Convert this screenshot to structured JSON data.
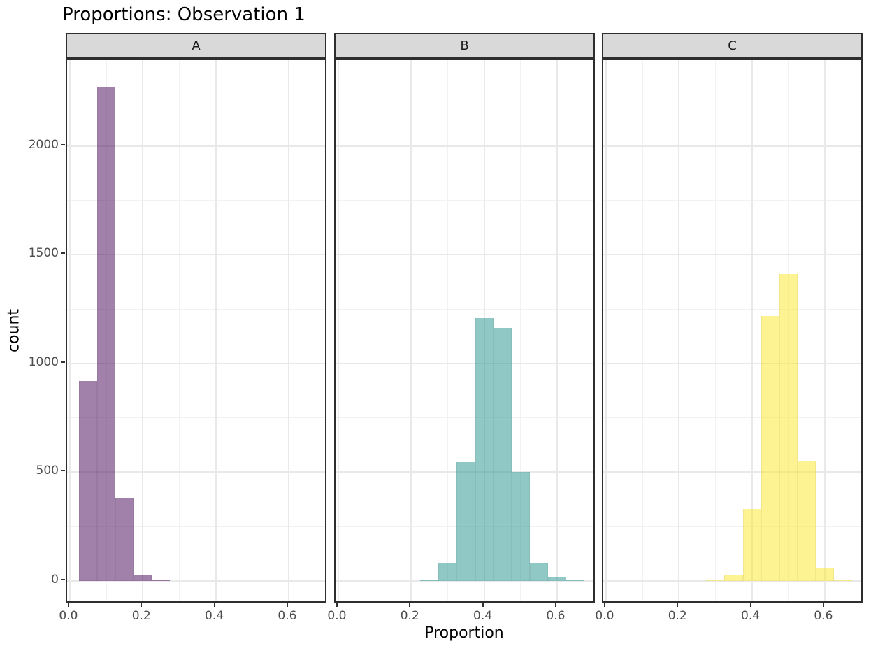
{
  "colors": {
    "background": "#FFFFFF",
    "strip_fill": "#D9D9D9",
    "strip_border": "#2E2E2E",
    "panel_border": "#2E2E2E",
    "grid_major": "#E9E9E9",
    "grid_minor": "#F2F2F2",
    "axis_tick": "#333333",
    "tick_label_text": "#4D4D4D",
    "title_text": "#000000"
  },
  "chart_data": {
    "type": "bar",
    "subtype": "faceted-histogram",
    "title": "Proportions: Observation 1",
    "xlabel": "Proportion",
    "ylabel": "count",
    "legend": "none",
    "grid": true,
    "bin_width": 0.05,
    "xlim": [
      -0.0075,
      0.7075
    ],
    "ylim": [
      -106,
      2395
    ],
    "x_tick_values": [
      0.0,
      0.2,
      0.4,
      0.6
    ],
    "x_tick_labels": [
      "0.0",
      "0.2",
      "0.4",
      "0.6"
    ],
    "x_minor_values": [
      0.1,
      0.3,
      0.5,
      0.7
    ],
    "y_tick_values": [
      0,
      500,
      1000,
      1500,
      2000
    ],
    "y_tick_labels": [
      "0",
      "500",
      "1000",
      "1500",
      "2000"
    ],
    "y_minor_values": [
      250,
      750,
      1250,
      1750,
      2250
    ],
    "facets": [
      {
        "label": "A",
        "fill": "rgba(68,1,84,0.5)",
        "fill_on_white_hex": "#A280AA",
        "bins": [
          {
            "start": 0.025,
            "count": 920
          },
          {
            "start": 0.075,
            "count": 2270
          },
          {
            "start": 0.125,
            "count": 380
          },
          {
            "start": 0.175,
            "count": 25
          },
          {
            "start": 0.225,
            "count": 5
          }
        ]
      },
      {
        "label": "B",
        "fill": "rgba(33,145,140,0.5)",
        "fill_on_white_hex": "#90C8C5",
        "bins": [
          {
            "start": 0.225,
            "count": 5
          },
          {
            "start": 0.275,
            "count": 85
          },
          {
            "start": 0.325,
            "count": 545
          },
          {
            "start": 0.375,
            "count": 1210
          },
          {
            "start": 0.425,
            "count": 1165
          },
          {
            "start": 0.475,
            "count": 500
          },
          {
            "start": 0.525,
            "count": 85
          },
          {
            "start": 0.575,
            "count": 15
          },
          {
            "start": 0.625,
            "count": 5
          }
        ]
      },
      {
        "label": "C",
        "fill": "rgba(253,231,37,0.5)",
        "fill_on_white_hex": "#FEF392",
        "bins": [
          {
            "start": 0.275,
            "count": 3
          },
          {
            "start": 0.325,
            "count": 25
          },
          {
            "start": 0.375,
            "count": 330
          },
          {
            "start": 0.425,
            "count": 1220
          },
          {
            "start": 0.475,
            "count": 1410
          },
          {
            "start": 0.525,
            "count": 550
          },
          {
            "start": 0.575,
            "count": 60
          },
          {
            "start": 0.625,
            "count": 3
          }
        ]
      }
    ]
  }
}
